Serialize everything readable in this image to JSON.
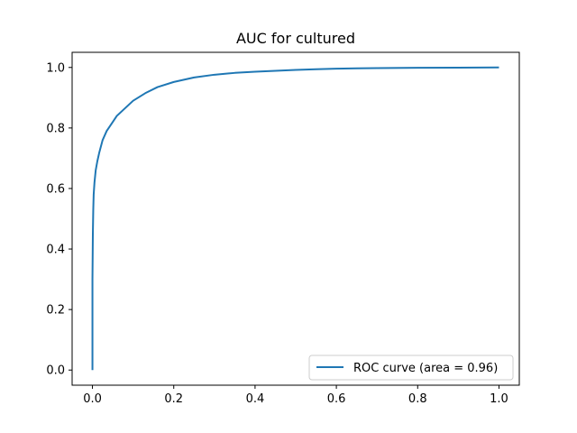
{
  "chart_data": {
    "type": "line",
    "title": "AUC for cultured",
    "xlabel": "",
    "ylabel": "",
    "xlim": [
      -0.05,
      1.05
    ],
    "ylim": [
      -0.05,
      1.05
    ],
    "xticks": [
      0.0,
      0.2,
      0.4,
      0.6,
      0.8,
      1.0
    ],
    "xtick_labels": [
      "0.0",
      "0.2",
      "0.4",
      "0.6",
      "0.8",
      "1.0"
    ],
    "yticks": [
      0.0,
      0.2,
      0.4,
      0.6,
      0.8,
      1.0
    ],
    "ytick_labels": [
      "0.0",
      "0.2",
      "0.4",
      "0.6",
      "0.8",
      "1.0"
    ],
    "grid": false,
    "legend_position": "lower-right",
    "series": [
      {
        "name": "ROC curve (area = 0.96)",
        "color": "#1f77b4",
        "x": [
          0.0,
          0.0,
          0.001,
          0.002,
          0.003,
          0.005,
          0.008,
          0.012,
          0.017,
          0.025,
          0.035,
          0.05,
          0.06,
          0.08,
          0.1,
          0.13,
          0.16,
          0.2,
          0.25,
          0.3,
          0.35,
          0.4,
          0.45,
          0.5,
          0.55,
          0.6,
          0.65,
          0.7,
          0.8,
          0.9,
          1.0
        ],
        "y": [
          0.0,
          0.3,
          0.45,
          0.53,
          0.58,
          0.62,
          0.66,
          0.69,
          0.72,
          0.76,
          0.79,
          0.82,
          0.84,
          0.865,
          0.89,
          0.915,
          0.935,
          0.952,
          0.967,
          0.976,
          0.982,
          0.986,
          0.989,
          0.992,
          0.994,
          0.996,
          0.997,
          0.998,
          0.999,
          0.9995,
          1.0
        ]
      }
    ]
  }
}
